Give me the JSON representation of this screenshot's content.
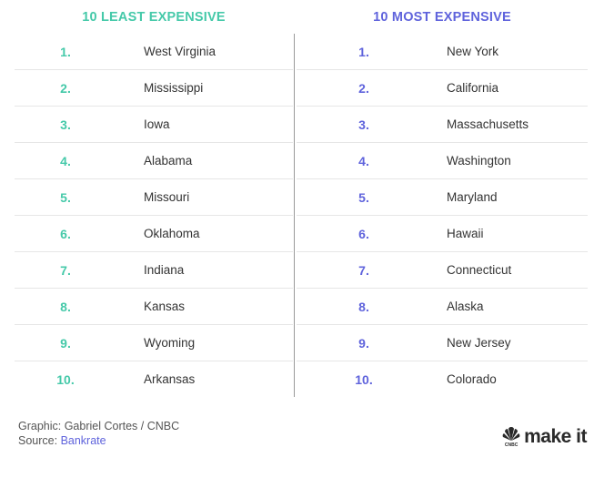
{
  "left": {
    "title": "10 LEAST EXPENSIVE",
    "rows": [
      {
        "rank": "1.",
        "state": "West Virginia"
      },
      {
        "rank": "2.",
        "state": "Mississippi"
      },
      {
        "rank": "3.",
        "state": "Iowa"
      },
      {
        "rank": "4.",
        "state": "Alabama"
      },
      {
        "rank": "5.",
        "state": "Missouri"
      },
      {
        "rank": "6.",
        "state": "Oklahoma"
      },
      {
        "rank": "7.",
        "state": "Indiana"
      },
      {
        "rank": "8.",
        "state": "Kansas"
      },
      {
        "rank": "9.",
        "state": "Wyoming"
      },
      {
        "rank": "10.",
        "state": "Arkansas"
      }
    ]
  },
  "right": {
    "title": "10 MOST EXPENSIVE",
    "rows": [
      {
        "rank": "1.",
        "state": "New York"
      },
      {
        "rank": "2.",
        "state": "California"
      },
      {
        "rank": "3.",
        "state": "Massachusetts"
      },
      {
        "rank": "4.",
        "state": "Washington"
      },
      {
        "rank": "5.",
        "state": "Maryland"
      },
      {
        "rank": "6.",
        "state": "Hawaii"
      },
      {
        "rank": "7.",
        "state": "Connecticut"
      },
      {
        "rank": "8.",
        "state": "Alaska"
      },
      {
        "rank": "9.",
        "state": "New Jersey"
      },
      {
        "rank": "10.",
        "state": "Colorado"
      }
    ]
  },
  "footer": {
    "graphic_credit": "Graphic: Gabriel Cortes / CNBC",
    "source_prefix": "Source: ",
    "source_name": "Bankrate"
  },
  "brand": {
    "logo_text": "make it",
    "network_mark": "CNBC",
    "icon": "nbc-peacock-icon"
  },
  "colors": {
    "least_accent": "#45c9a9",
    "most_accent": "#5f63dc",
    "text": "#333333"
  }
}
